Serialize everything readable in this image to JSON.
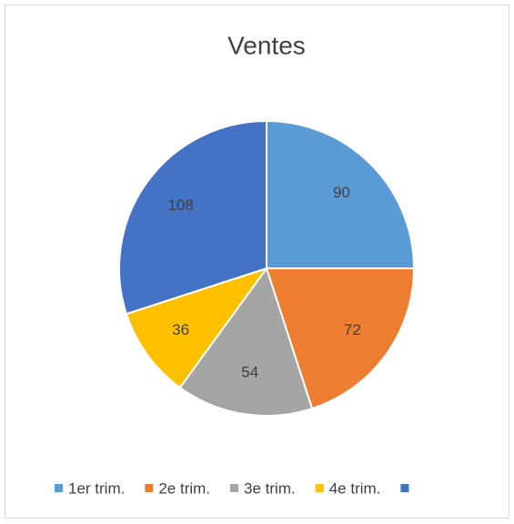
{
  "chart_data": {
    "type": "pie",
    "title": "Ventes",
    "categories": [
      "1er trim.",
      "2e trim.",
      "3e trim.",
      "4e trim.",
      null
    ],
    "values": [
      90,
      72,
      54,
      36,
      108
    ],
    "colors": [
      "#5b9bd5",
      "#ed7d31",
      "#a5a5a5",
      "#ffc000",
      "#4472c4"
    ],
    "legend": "bottom"
  }
}
